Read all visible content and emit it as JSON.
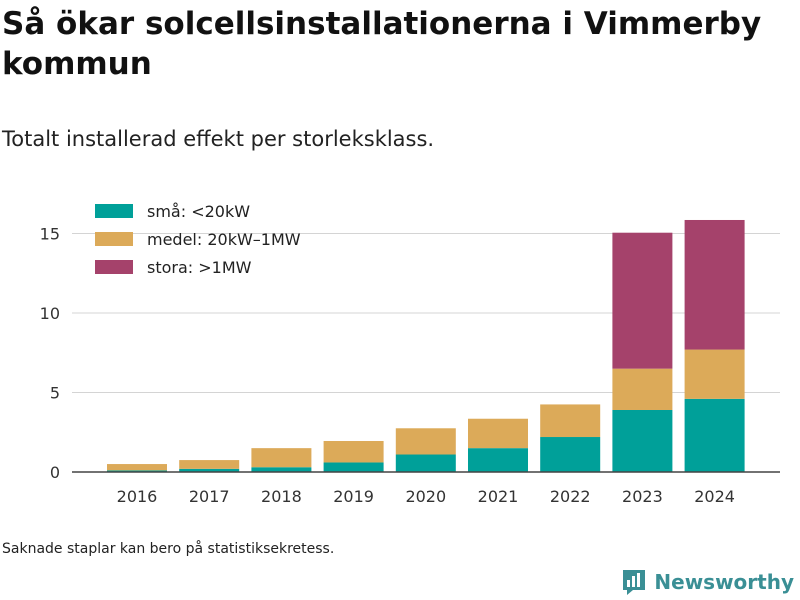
{
  "title": "Så ökar solcellsinstallationerna i Vimmerby kommun",
  "subtitle": "Totalt installerad effekt per storleksklass.",
  "note": "Saknade staplar kan bero på statistiksekretess.",
  "brand": {
    "name": "Newsworthy",
    "icon": "newsworthy-logo-icon",
    "color": "#3a8f95"
  },
  "chart_data": {
    "type": "bar",
    "stacked": true,
    "title": "",
    "xlabel": "",
    "ylabel": "",
    "categories": [
      "2016",
      "2017",
      "2018",
      "2019",
      "2020",
      "2021",
      "2022",
      "2023",
      "2024"
    ],
    "series": [
      {
        "name": "små: <20kW",
        "color": "#00a099",
        "values": [
          0.1,
          0.2,
          0.3,
          0.6,
          1.1,
          1.5,
          2.2,
          3.9,
          4.6
        ]
      },
      {
        "name": "medel: 20kW–1MW",
        "color": "#dcaa59",
        "values": [
          0.4,
          0.55,
          1.2,
          1.35,
          1.65,
          1.85,
          2.05,
          2.6,
          3.1
        ]
      },
      {
        "name": "stora: >1MW",
        "color": "#a5426b",
        "values": [
          0,
          0,
          0,
          0,
          0,
          0,
          0,
          8.55,
          8.15
        ]
      }
    ],
    "ylim": [
      0,
      17
    ],
    "yticks": [
      0,
      5,
      10,
      15
    ],
    "grid": true,
    "legend_position": "top-left"
  }
}
